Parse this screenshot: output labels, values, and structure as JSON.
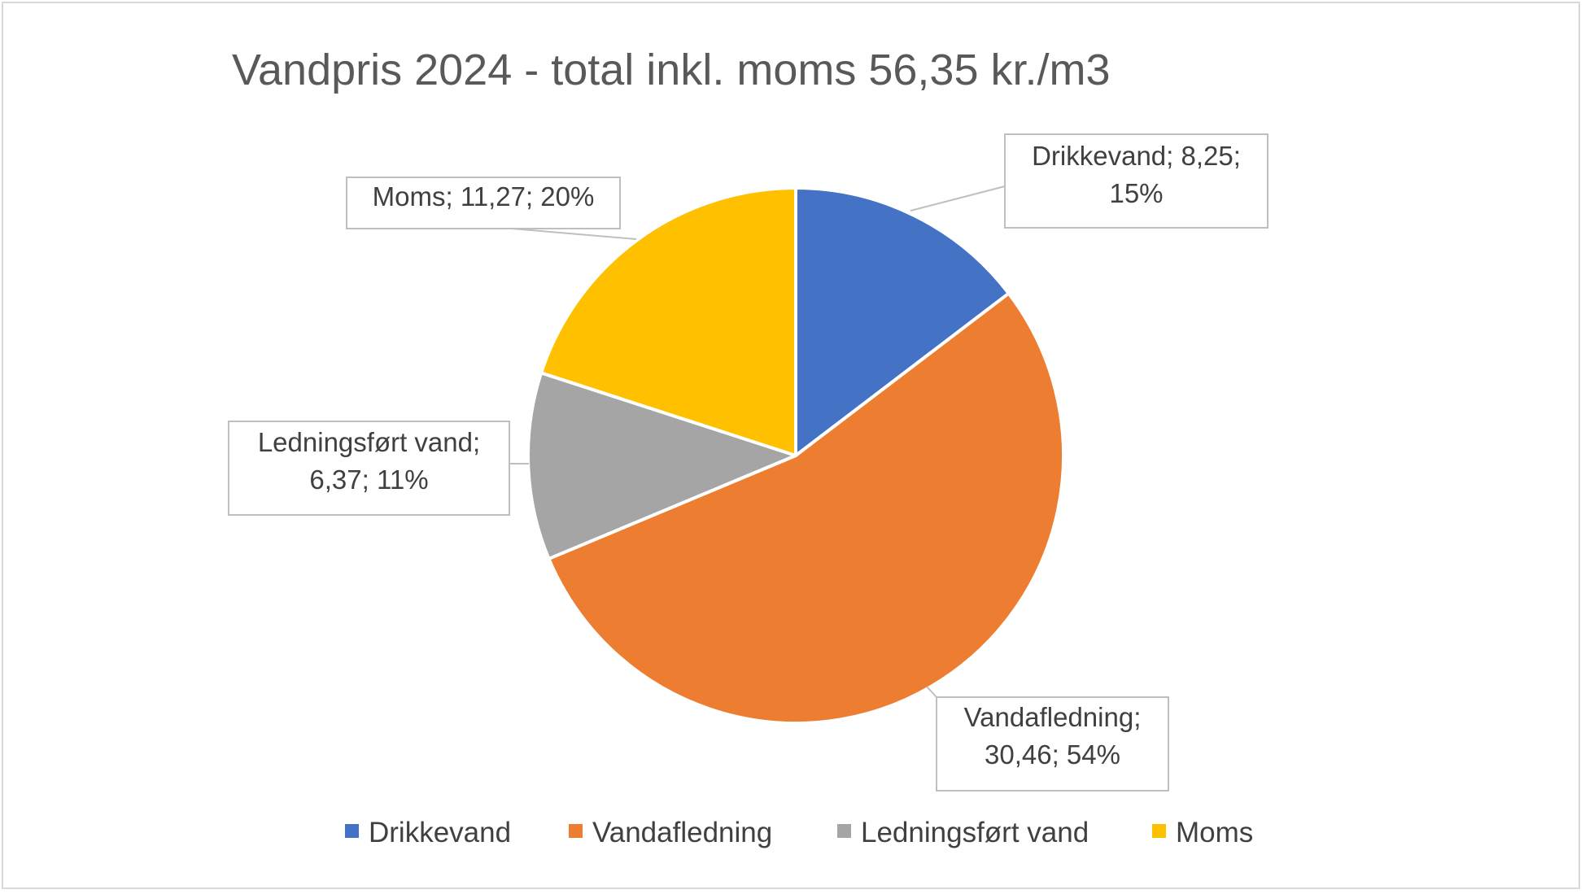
{
  "chart_data": {
    "type": "pie",
    "title": "Vandpris 2024 - total inkl. moms 56,35 kr./m3",
    "categories": [
      "Drikkevand",
      "Vandafledning",
      "Ledningsført vand",
      "Moms"
    ],
    "values": [
      8.25,
      30.46,
      6.37,
      11.27
    ],
    "percent_labels": [
      "15%",
      "54%",
      "11%",
      "20%"
    ],
    "colors": [
      "#4472C4",
      "#ED7D31",
      "#A5A5A5",
      "#FFC000"
    ],
    "data_labels": [
      [
        "Drikkevand; 8,25;",
        "15%"
      ],
      [
        "Vandafledning;",
        "30,46; 54%"
      ],
      [
        "Ledningsført vand;",
        "6,37; 11%"
      ],
      [
        "Moms; 11,27; 20%"
      ]
    ],
    "start_angle_deg": 0,
    "direction": "clockwise",
    "legend": {
      "position": "bottom",
      "entries": [
        "Drikkevand",
        "Vandafledning",
        "Ledningsført vand",
        "Moms"
      ]
    }
  }
}
